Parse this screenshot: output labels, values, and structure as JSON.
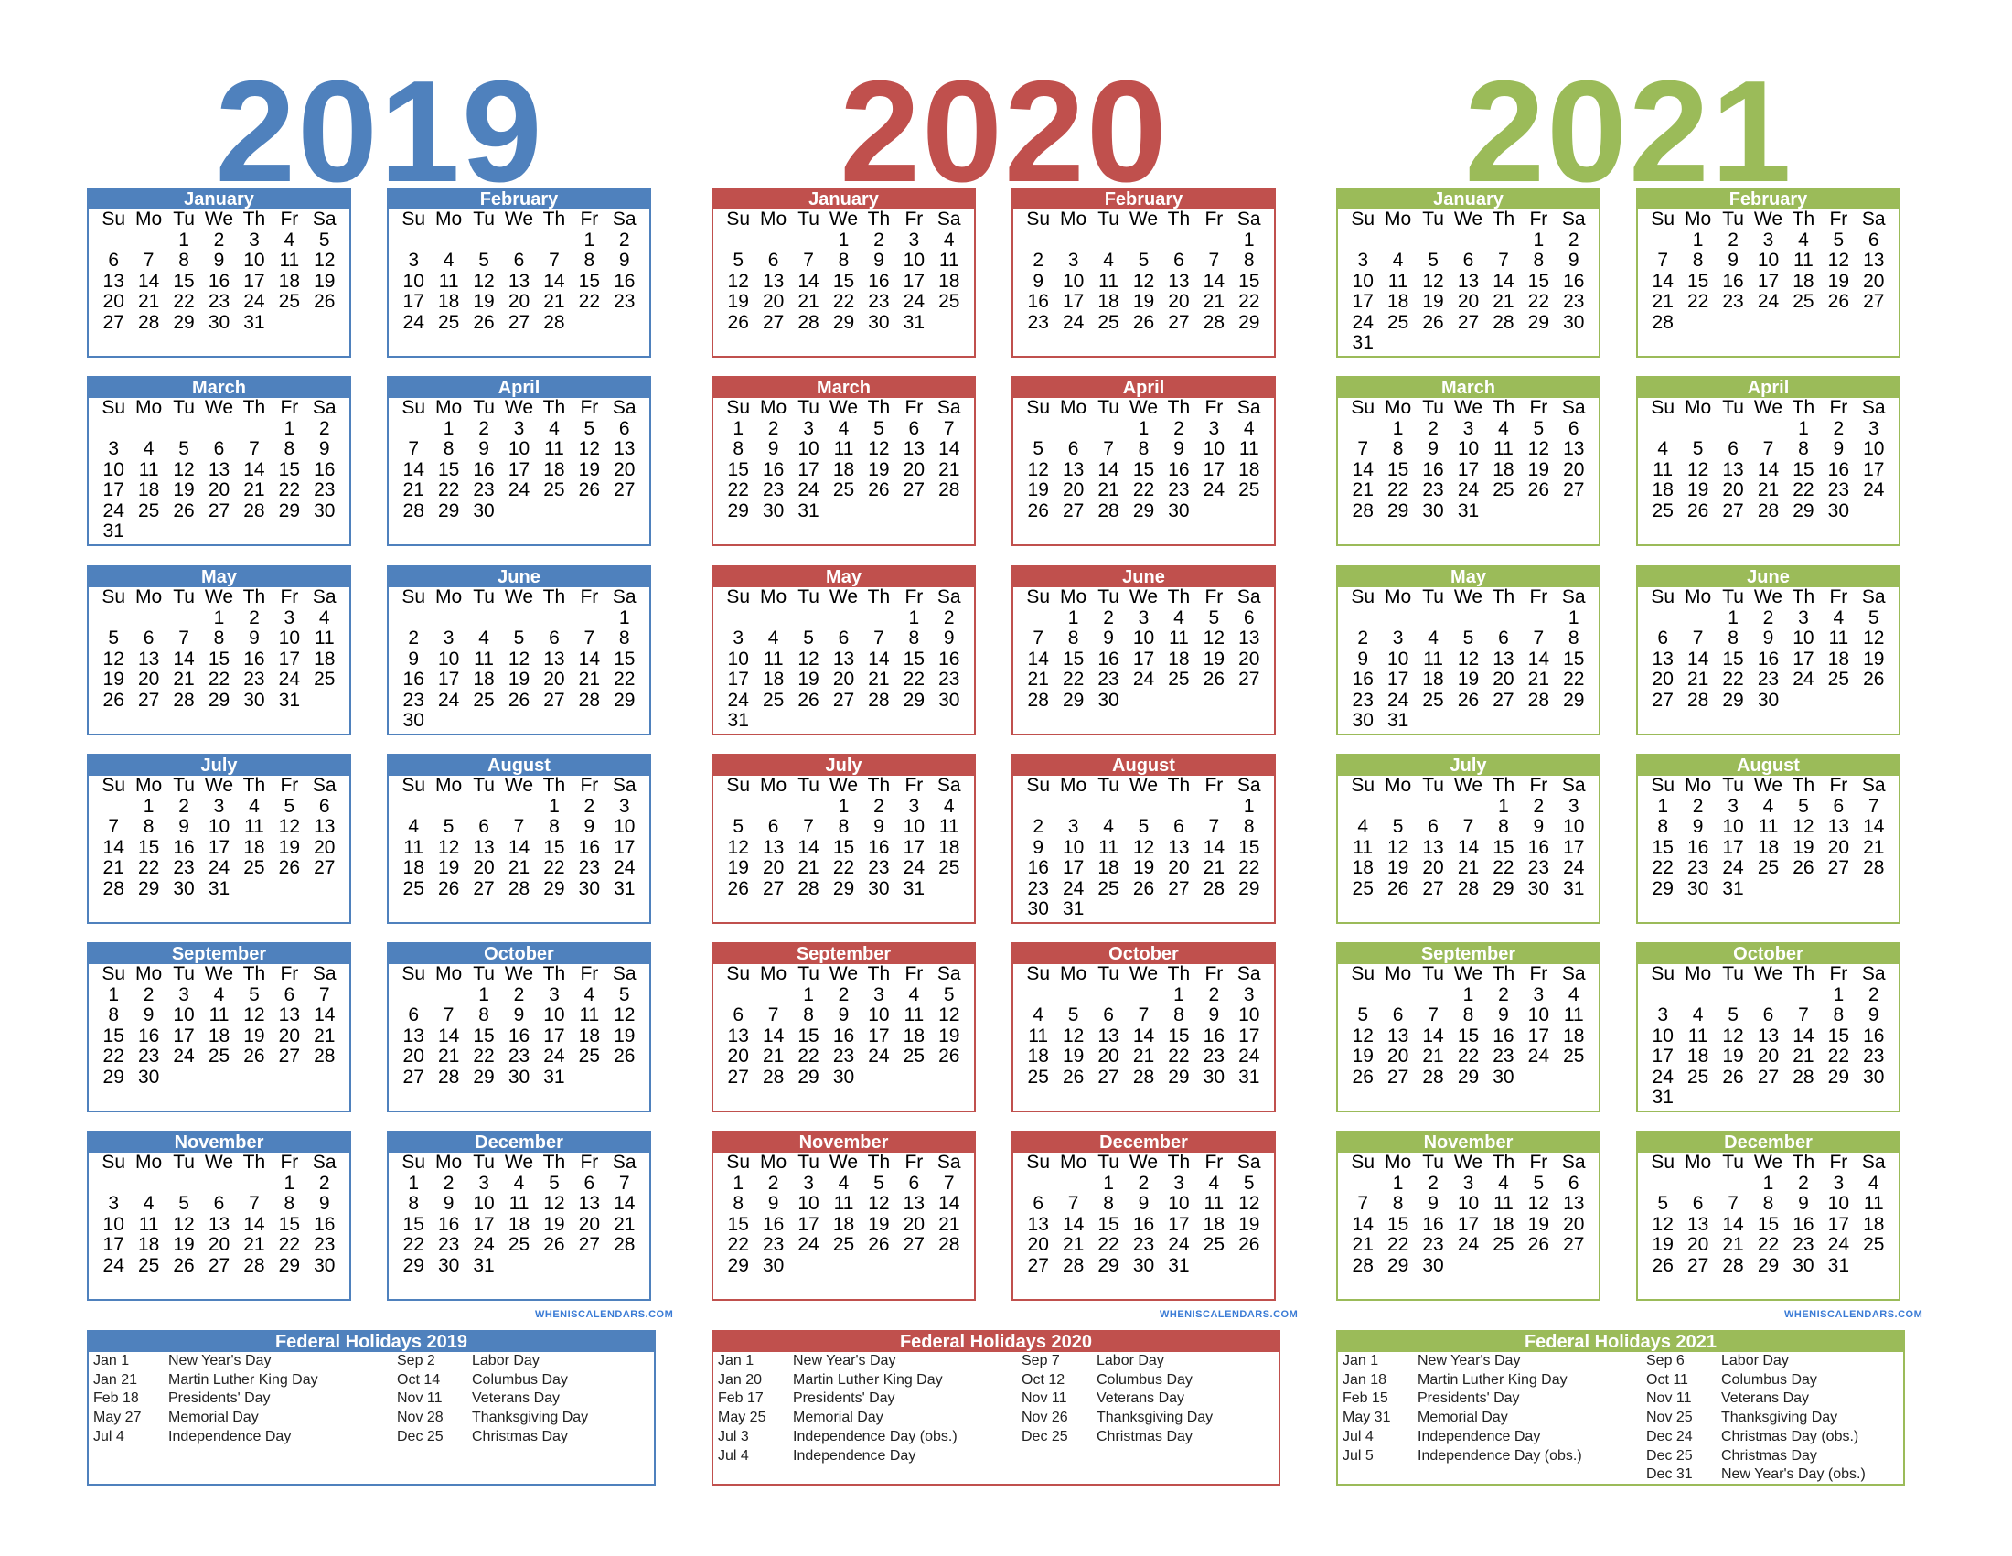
{
  "years": [
    {
      "year": "2019",
      "color": "#4f81bd",
      "watermark": "WHENISCALENDARS.COM",
      "months": [
        {
          "name": "January",
          "start": 2,
          "days": 31
        },
        {
          "name": "February",
          "start": 5,
          "days": 28
        },
        {
          "name": "March",
          "start": 5,
          "days": 31
        },
        {
          "name": "April",
          "start": 1,
          "days": 30
        },
        {
          "name": "May",
          "start": 3,
          "days": 31
        },
        {
          "name": "June",
          "start": 6,
          "days": 30
        },
        {
          "name": "July",
          "start": 1,
          "days": 31
        },
        {
          "name": "August",
          "start": 4,
          "days": 31
        },
        {
          "name": "September",
          "start": 0,
          "days": 30
        },
        {
          "name": "October",
          "start": 2,
          "days": 31
        },
        {
          "name": "November",
          "start": 5,
          "days": 30
        },
        {
          "name": "December",
          "start": 0,
          "days": 31
        }
      ],
      "holidays_title": "Federal Holidays 2019",
      "holidays_left": [
        {
          "date": "Jan 1",
          "name": "New Year's Day"
        },
        {
          "date": "Jan 21",
          "name": "Martin Luther King Day"
        },
        {
          "date": "Feb 18",
          "name": "Presidents' Day"
        },
        {
          "date": "May 27",
          "name": "Memorial Day"
        },
        {
          "date": "Jul 4",
          "name": "Independence Day"
        }
      ],
      "holidays_right": [
        {
          "date": "Sep 2",
          "name": "Labor Day"
        },
        {
          "date": "Oct 14",
          "name": "Columbus Day"
        },
        {
          "date": "Nov 11",
          "name": "Veterans Day"
        },
        {
          "date": "Nov 28",
          "name": "Thanksgiving Day"
        },
        {
          "date": "Dec 25",
          "name": "Christmas Day"
        }
      ]
    },
    {
      "year": "2020",
      "color": "#c0504d",
      "watermark": "WHENISCALENDARS.COM",
      "months": [
        {
          "name": "January",
          "start": 3,
          "days": 31
        },
        {
          "name": "February",
          "start": 6,
          "days": 29
        },
        {
          "name": "March",
          "start": 0,
          "days": 31
        },
        {
          "name": "April",
          "start": 3,
          "days": 30
        },
        {
          "name": "May",
          "start": 5,
          "days": 31
        },
        {
          "name": "June",
          "start": 1,
          "days": 30
        },
        {
          "name": "July",
          "start": 3,
          "days": 31
        },
        {
          "name": "August",
          "start": 6,
          "days": 31
        },
        {
          "name": "September",
          "start": 2,
          "days": 30
        },
        {
          "name": "October",
          "start": 4,
          "days": 31
        },
        {
          "name": "November",
          "start": 0,
          "days": 30
        },
        {
          "name": "December",
          "start": 2,
          "days": 31
        }
      ],
      "holidays_title": "Federal Holidays 2020",
      "holidays_left": [
        {
          "date": "Jan 1",
          "name": "New Year's Day"
        },
        {
          "date": "Jan 20",
          "name": "Martin Luther King Day"
        },
        {
          "date": "Feb 17",
          "name": "Presidents' Day"
        },
        {
          "date": "May 25",
          "name": "Memorial Day"
        },
        {
          "date": "Jul 3",
          "name": "Independence Day (obs.)"
        },
        {
          "date": "Jul 4",
          "name": "Independence Day"
        }
      ],
      "holidays_right": [
        {
          "date": "Sep 7",
          "name": "Labor Day"
        },
        {
          "date": "Oct 12",
          "name": "Columbus Day"
        },
        {
          "date": "Nov 11",
          "name": "Veterans Day"
        },
        {
          "date": "Nov 26",
          "name": "Thanksgiving Day"
        },
        {
          "date": "Dec 25",
          "name": "Christmas Day"
        }
      ]
    },
    {
      "year": "2021",
      "color": "#9bbb59",
      "watermark": "WHENISCALENDARS.COM",
      "months": [
        {
          "name": "January",
          "start": 5,
          "days": 31
        },
        {
          "name": "February",
          "start": 1,
          "days": 28
        },
        {
          "name": "March",
          "start": 1,
          "days": 31
        },
        {
          "name": "April",
          "start": 4,
          "days": 30
        },
        {
          "name": "May",
          "start": 6,
          "days": 31
        },
        {
          "name": "June",
          "start": 2,
          "days": 30
        },
        {
          "name": "July",
          "start": 4,
          "days": 31
        },
        {
          "name": "August",
          "start": 0,
          "days": 31
        },
        {
          "name": "September",
          "start": 3,
          "days": 30
        },
        {
          "name": "October",
          "start": 5,
          "days": 31
        },
        {
          "name": "November",
          "start": 1,
          "days": 30
        },
        {
          "name": "December",
          "start": 3,
          "days": 31
        }
      ],
      "holidays_title": "Federal Holidays 2021",
      "holidays_left": [
        {
          "date": "Jan 1",
          "name": "New Year's Day"
        },
        {
          "date": "Jan 18",
          "name": "Martin Luther King Day"
        },
        {
          "date": "Feb 15",
          "name": "Presidents' Day"
        },
        {
          "date": "May 31",
          "name": "Memorial Day"
        },
        {
          "date": "Jul 4",
          "name": "Independence Day"
        },
        {
          "date": "Jul 5",
          "name": "Independence Day (obs.)"
        }
      ],
      "holidays_right": [
        {
          "date": "Sep 6",
          "name": "Labor Day"
        },
        {
          "date": "Oct 11",
          "name": "Columbus Day"
        },
        {
          "date": "Nov 11",
          "name": "Veterans Day"
        },
        {
          "date": "Nov 25",
          "name": "Thanksgiving Day"
        },
        {
          "date": "Dec 24",
          "name": "Christmas Day (obs.)"
        },
        {
          "date": "Dec 25",
          "name": "Christmas Day"
        },
        {
          "date": "Dec 31",
          "name": "New Year's Day (obs.)"
        }
      ]
    }
  ],
  "weekdays": [
    "Su",
    "Mo",
    "Tu",
    "We",
    "Th",
    "Fr",
    "Sa"
  ]
}
